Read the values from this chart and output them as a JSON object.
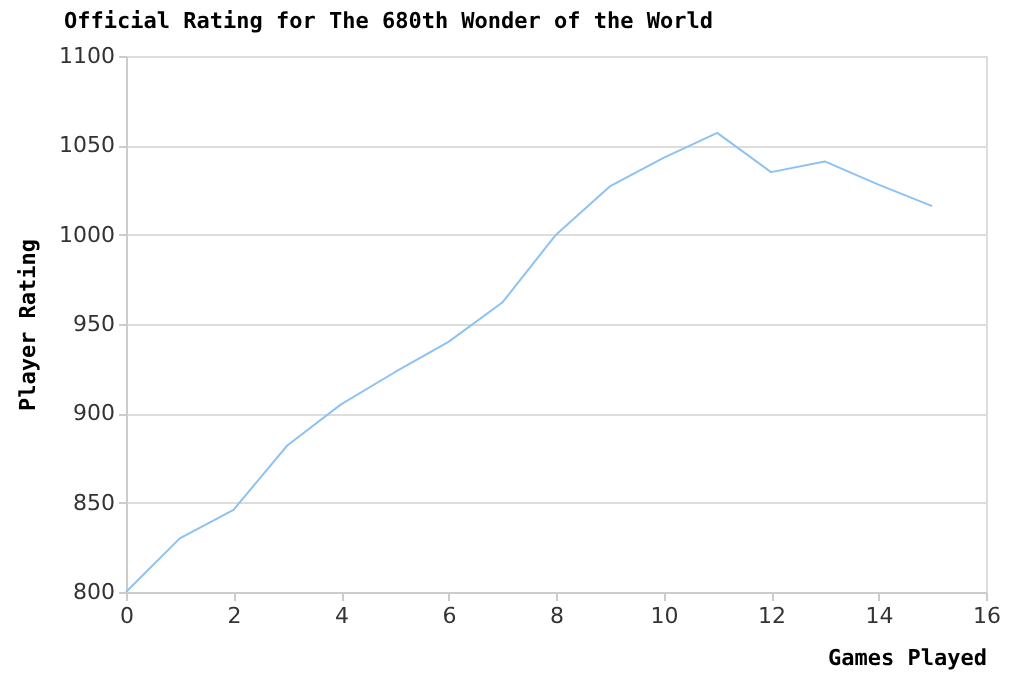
{
  "chart_data": {
    "type": "line",
    "title": "Official Rating for The 680th Wonder of the World",
    "xlabel": "Games Played",
    "ylabel": "Player Rating",
    "x": [
      0,
      1,
      2,
      3,
      4,
      5,
      6,
      7,
      8,
      9,
      10,
      11,
      12,
      13,
      14,
      15
    ],
    "series": [
      {
        "color": "#8ec2f2",
        "values": [
          800,
          830,
          846,
          882,
          905,
          923,
          940,
          962,
          1000,
          1027,
          1043,
          1057,
          1035,
          1041,
          1028,
          1016
        ]
      }
    ],
    "xlim": [
      0,
      16
    ],
    "xticks": [
      0,
      2,
      4,
      6,
      8,
      10,
      12,
      14,
      16
    ],
    "ylim": [
      800,
      1100
    ],
    "yticks": [
      800,
      850,
      900,
      950,
      1000,
      1050,
      1100
    ],
    "grid": "y",
    "legend": false,
    "marker": "none",
    "line_style": "solid"
  }
}
